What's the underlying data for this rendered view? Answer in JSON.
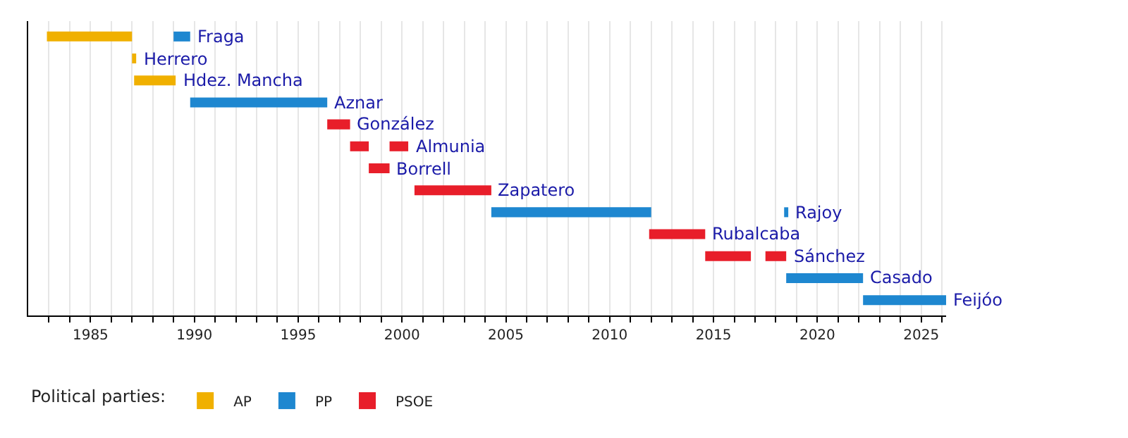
{
  "chart_data": {
    "type": "bar",
    "orientation": "horizontal",
    "stacked": false,
    "categories": [
      "Fraga",
      "Herrero",
      "Hdez. Mancha",
      "Aznar",
      "González",
      "Almunia",
      "Borrell",
      "Zapatero",
      "Rajoy",
      "Rubalcaba",
      "Sánchez",
      "Casado",
      "Feijóo"
    ],
    "series": [
      {
        "name": "AP",
        "color": "#f0b000",
        "base": [
          1982.9,
          1987.0,
          1987.1,
          null,
          null,
          null,
          null,
          null,
          null,
          null,
          null,
          null,
          null
        ],
        "values": [
          4.1,
          0.2,
          2.0,
          null,
          null,
          null,
          null,
          null,
          null,
          null,
          null,
          null,
          null
        ]
      },
      {
        "name": "PP",
        "color": "#1e87d0",
        "base": [
          1989.0,
          null,
          null,
          1989.8,
          null,
          null,
          null,
          null,
          2004.3,
          null,
          null,
          2018.5,
          2022.2
        ],
        "values": [
          0.8,
          null,
          null,
          6.6,
          null,
          null,
          null,
          null,
          7.7,
          null,
          null,
          3.7,
          4.0
        ]
      },
      {
        "name": "PSOE",
        "color": "#e81e2a",
        "base": [
          null,
          null,
          null,
          null,
          1996.4,
          1997.5,
          1998.4,
          2000.6,
          null,
          2011.9,
          2014.6,
          null,
          null
        ],
        "values": [
          null,
          null,
          null,
          null,
          1.1,
          0.9,
          1.0,
          3.7,
          null,
          2.7,
          2.2,
          null,
          null
        ]
      },
      {
        "color": "#1e87d0",
        "base": [
          null,
          null,
          null,
          null,
          null,
          null,
          null,
          null,
          2018.4,
          null,
          null,
          null,
          null
        ],
        "values": [
          null,
          null,
          null,
          null,
          null,
          null,
          null,
          null,
          0.2,
          null,
          null,
          null,
          null
        ]
      },
      {
        "color": "#e81e2a",
        "base": [
          null,
          null,
          null,
          null,
          null,
          1999.4,
          null,
          null,
          null,
          null,
          2017.5,
          null,
          null
        ],
        "values": [
          null,
          null,
          null,
          null,
          null,
          0.9,
          null,
          null,
          null,
          null,
          1.0,
          null,
          null
        ]
      }
    ],
    "xlim": [
      1982,
      2026.2
    ],
    "xticks": [
      {
        "value": 1983,
        "label": null
      },
      {
        "value": 1984,
        "label": null
      },
      1985,
      {
        "value": 1986,
        "label": null
      },
      {
        "value": 1987,
        "label": null
      },
      {
        "value": 1988,
        "label": null
      },
      {
        "value": 1989,
        "label": null
      },
      1990,
      {
        "value": 1991,
        "label": null
      },
      {
        "value": 1992,
        "label": null
      },
      {
        "value": 1993,
        "label": null
      },
      {
        "value": 1994,
        "label": null
      },
      1995,
      {
        "value": 1996,
        "label": null
      },
      {
        "value": 1997,
        "label": null
      },
      {
        "value": 1998,
        "label": null
      },
      {
        "value": 1999,
        "label": null
      },
      2000,
      {
        "value": 2001,
        "label": null
      },
      {
        "value": 2002,
        "label": null
      },
      {
        "value": 2003,
        "label": null
      },
      {
        "value": 2004,
        "label": null
      },
      2005,
      {
        "value": 2006,
        "label": null
      },
      {
        "value": 2007,
        "label": null
      },
      {
        "value": 2008,
        "label": null
      },
      {
        "value": 2009,
        "label": null
      },
      2010,
      {
        "value": 2011,
        "label": null
      },
      {
        "value": 2012,
        "label": null
      },
      {
        "value": 2013,
        "label": null
      },
      {
        "value": 2014,
        "label": null
      },
      2015,
      {
        "value": 2016,
        "label": null
      },
      {
        "value": 2017,
        "label": null
      },
      {
        "value": 2018,
        "label": null
      },
      {
        "value": 2019,
        "label": null
      },
      2020,
      {
        "value": 2021,
        "label": null
      },
      {
        "value": 2022,
        "label": null
      },
      {
        "value": 2023,
        "label": null
      },
      {
        "value": 2024,
        "label": null
      },
      2025,
      {
        "value": 2026,
        "label": null
      }
    ],
    "grid": "x",
    "legend": "bottom left",
    "legend_title": "Political parties:",
    "tick_labels": "x"
  }
}
